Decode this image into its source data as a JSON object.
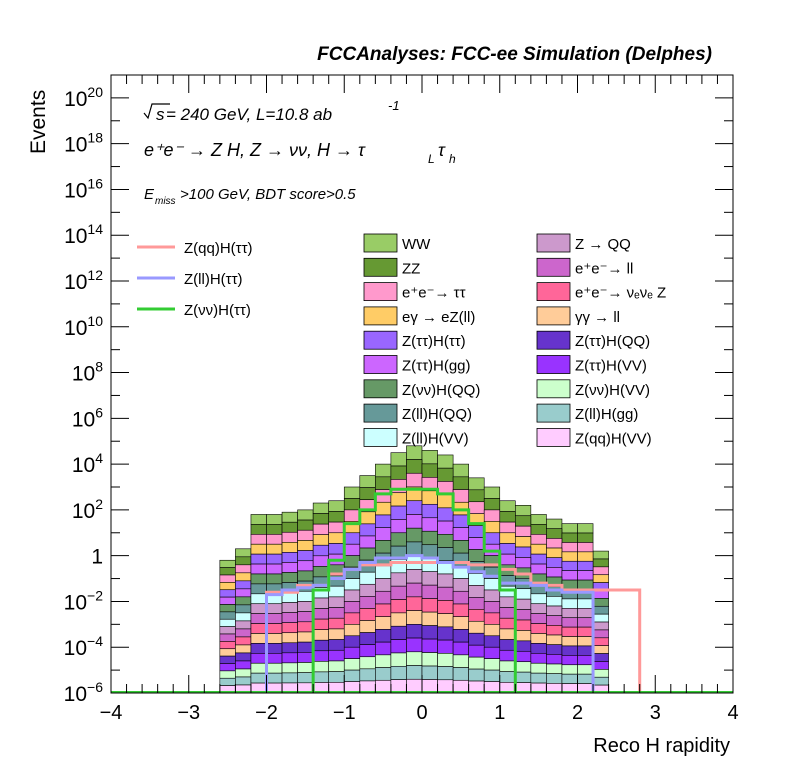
{
  "chart_data": {
    "type": "histogram",
    "header": "FCCAnalyses: FCC-ee Simulation (Delphes)",
    "xlabel": "Reco H rapidity",
    "ylabel": "Events",
    "xlim": [
      -4,
      4
    ],
    "ylim": [
      1e-06,
      1e+21
    ],
    "yscale": "log",
    "x_ticks": [
      "−4",
      "−3",
      "−2",
      "−1",
      "0",
      "1",
      "2",
      "3",
      "4"
    ],
    "y_ticks": [
      {
        "base": "10",
        "exp": "20"
      },
      {
        "base": "10",
        "exp": "18"
      },
      {
        "base": "10",
        "exp": "16"
      },
      {
        "base": "10",
        "exp": "14"
      },
      {
        "base": "10",
        "exp": "12"
      },
      {
        "base": "10",
        "exp": "10"
      },
      {
        "base": "10",
        "exp": "8"
      },
      {
        "base": "10",
        "exp": "6"
      },
      {
        "base": "10",
        "exp": "4"
      },
      {
        "base": "10",
        "exp": "2"
      },
      {
        "base": "1",
        "exp": ""
      },
      {
        "base": "10",
        "exp": "−2"
      },
      {
        "base": "10",
        "exp": "−4"
      },
      {
        "base": "10",
        "exp": "−6"
      }
    ],
    "annotations": {
      "sqrt_s": "s",
      "energy_lumi": " = 240 GeV, L=10.8 ab",
      "lumi_exp": "-1",
      "process": "e⁺e⁻ → Z H, Z  → νν, H  → τ",
      "process_sub1": "L",
      "process_tau2": "τ",
      "process_sub2": "h",
      "cut_E": "E",
      "cut_sub": "miss",
      "cut_rest": ">100 GeV, BDT score>0.5"
    },
    "bin_edges": [
      -3.6,
      -3.4,
      -3.2,
      -3.0,
      -2.8,
      -2.6,
      -2.4,
      -2.2,
      -2.0,
      -1.8,
      -1.6,
      -1.4,
      -1.2,
      -1.0,
      -0.8,
      -0.6,
      -0.4,
      -0.2,
      0.0,
      0.2,
      0.4,
      0.6,
      0.8,
      1.0,
      1.2,
      1.4,
      1.6,
      1.8,
      2.0,
      2.2,
      2.4,
      2.6,
      2.8,
      3.0,
      3.2,
      3.4,
      3.6
    ],
    "stack_total_log10": [
      -6,
      -6,
      -6,
      -6,
      -6,
      -0.2,
      0.3,
      1.8,
      1.8,
      1.9,
      2.0,
      2.3,
      2.4,
      3.0,
      3.5,
      4.0,
      4.5,
      4.8,
      4.6,
      4.4,
      4.0,
      3.4,
      3.0,
      2.4,
      2.2,
      1.8,
      1.6,
      1.4,
      1.4,
      0.2,
      -6,
      -6,
      -6,
      -6,
      -6,
      -6
    ],
    "stack": [
      {
        "name": "WW",
        "color": "#99cc66"
      },
      {
        "name": "ZZ",
        "color": "#669933"
      },
      {
        "name": "e⁺e⁻→ ττ",
        "color": "#ff99cc"
      },
      {
        "name": "eγ → eZ(ll)",
        "color": "#ffcc66"
      },
      {
        "name": "Z(ττ)H(ττ)",
        "color": "#9966ff"
      },
      {
        "name": "Z(ττ)H(gg)",
        "color": "#cc66ff"
      },
      {
        "name": "Z(νν)H(QQ)",
        "color": "#669966"
      },
      {
        "name": "Z(ll)H(QQ)",
        "color": "#669999"
      },
      {
        "name": "Z(ll)H(VV)",
        "color": "#ccffff"
      },
      {
        "name": "Z → QQ",
        "color": "#cc99cc"
      },
      {
        "name": "e⁺e⁻→ ll",
        "color": "#cc66cc"
      },
      {
        "name": "e⁺e⁻→ νₑνₑ Z",
        "color": "#ff6699"
      },
      {
        "name": "γγ → ll",
        "color": "#ffcc99"
      },
      {
        "name": "Z(ττ)H(QQ)",
        "color": "#6633cc"
      },
      {
        "name": "Z(ττ)H(VV)",
        "color": "#9933ff"
      },
      {
        "name": "Z(νν)H(VV)",
        "color": "#ccffcc"
      },
      {
        "name": "Z(ll)H(gg)",
        "color": "#99cccc"
      },
      {
        "name": "Z(qq)H(VV)",
        "color": "#ffccff"
      }
    ],
    "signals": [
      {
        "name": "Z(qq)H(ττ)",
        "color": "#ff9999",
        "log10": [
          -6,
          -6,
          -6,
          -6,
          -6,
          -6,
          -6,
          -6,
          -1.6,
          -1.6,
          -1.3,
          -1.3,
          -0.8,
          -0.6,
          -0.4,
          -0.4,
          -0.3,
          -0.3,
          -0.3,
          -0.3,
          -0.3,
          -0.4,
          -0.4,
          -0.6,
          -0.8,
          -1.2,
          -1.3,
          -1.5,
          -1.5,
          -1.5,
          -1.5,
          -1.5,
          -6,
          -6,
          -6,
          -6
        ]
      },
      {
        "name": "Z(ll)H(ττ)",
        "color": "#9999ff",
        "log10": [
          -6,
          -6,
          -6,
          -6,
          -6,
          -6,
          -6,
          -6,
          -1.7,
          -1.5,
          -1.4,
          -1.3,
          -1.0,
          -0.6,
          -0.3,
          -0.1,
          -0.1,
          0.0,
          -0.1,
          -0.3,
          -0.5,
          -0.7,
          -0.9,
          -1.2,
          -1.2,
          -1.3,
          -1.5,
          -1.6,
          -1.6,
          -6,
          -6,
          -6,
          -6,
          -6,
          -6,
          -6
        ]
      },
      {
        "name": "Z(νν)H(ττ)",
        "color": "#33cc33",
        "log10": [
          -6,
          -6,
          -6,
          -6,
          -6,
          -6,
          -6,
          -6,
          -6,
          -6,
          -6,
          -1.5,
          -0.2,
          1.4,
          2.0,
          2.7,
          2.9,
          2.9,
          2.9,
          2.7,
          2.0,
          1.4,
          0.2,
          -1.5,
          -6,
          -6,
          -6,
          -6,
          -6,
          -6,
          -6,
          -6,
          -6,
          -6,
          -6,
          -6
        ]
      }
    ]
  }
}
